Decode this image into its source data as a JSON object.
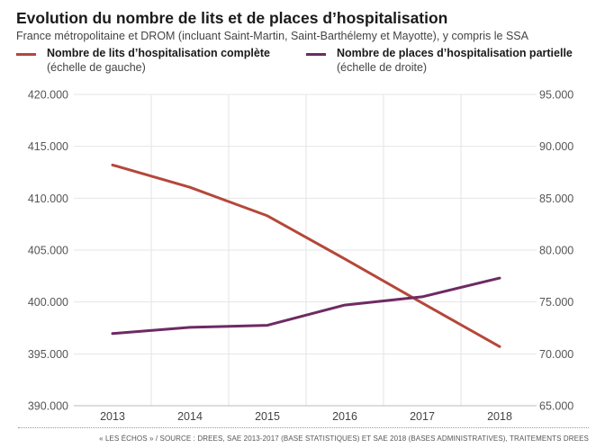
{
  "chart_data": {
    "type": "line",
    "title": "Evolution du nombre de lits et de places d’hospitalisation",
    "subtitle": "France métropolitaine et DROM (incluant Saint-Martin, Saint-Barthélemy et Mayotte), y compris le SSA",
    "x": [
      "2013",
      "2014",
      "2015",
      "2016",
      "2017",
      "2018"
    ],
    "y_left": {
      "ylim": [
        390000,
        420000
      ],
      "ticks": [
        "420.000",
        "415.000",
        "410.000",
        "405.000",
        "400.000",
        "395.000",
        "390.000"
      ],
      "tick_values": [
        420000,
        415000,
        410000,
        405000,
        400000,
        395000,
        390000
      ]
    },
    "y_right": {
      "ylim": [
        65000,
        95000
      ],
      "ticks": [
        "95.000",
        "90.000",
        "85.000",
        "80.000",
        "75.000",
        "70.000",
        "65.000"
      ],
      "tick_values": [
        95000,
        90000,
        85000,
        80000,
        75000,
        70000,
        65000
      ]
    },
    "grid": true,
    "legend_placement": "top",
    "series": [
      {
        "name": "Nombre de lits d’hospitalisation complète",
        "scale_note": "(échelle de gauche)",
        "axis": "left",
        "color": "#b5473a",
        "values": [
          413200,
          411050,
          408300,
          404150,
          399900,
          395700
        ]
      },
      {
        "name": "Nombre de places d’hospitalisation partielle",
        "scale_note": "(échelle de droite)",
        "axis": "right",
        "color": "#6e2a63",
        "values": [
          71950,
          72550,
          72750,
          74700,
          75500,
          77300
        ]
      }
    ],
    "source": "« LES ÉCHOS » / SOURCE : DREES, SAE 2013-2017 (BASE STATISTIQUES) ET SAE 2018 (BASES ADMINISTRATIVES), TRAITEMENTS DREES"
  }
}
